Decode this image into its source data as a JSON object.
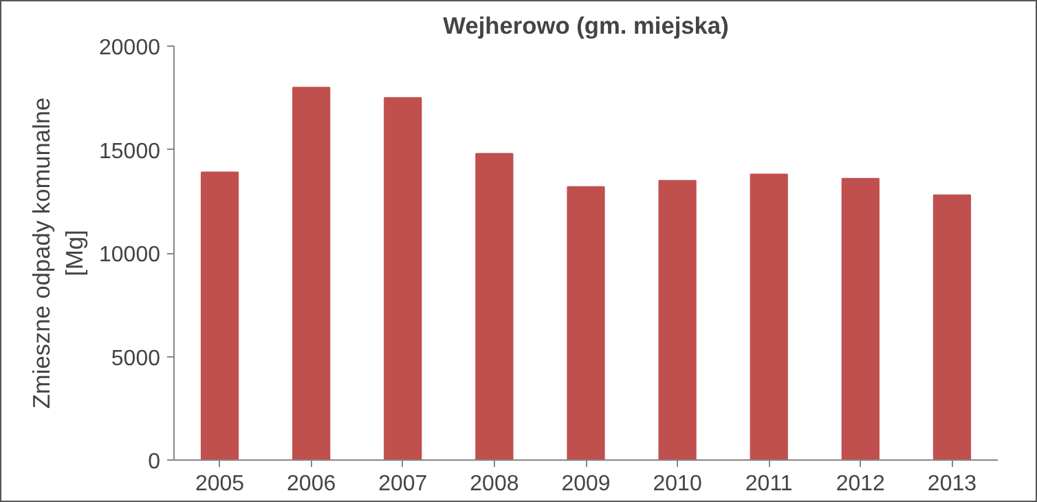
{
  "chart_data": {
    "type": "bar",
    "title": "Wejherowo (gm. miejska)",
    "ylabel": "Zmieszne odpady komunalne [Mg]",
    "categories": [
      "2005",
      "2006",
      "2007",
      "2008",
      "2009",
      "2010",
      "2011",
      "2012",
      "2013"
    ],
    "values": [
      13900,
      18000,
      17500,
      14800,
      13200,
      13500,
      13800,
      13600,
      12800
    ],
    "color": "#c0504d",
    "ylim": [
      0,
      20000
    ],
    "yticks": [
      0,
      5000,
      10000,
      15000,
      20000
    ],
    "grid": false
  }
}
